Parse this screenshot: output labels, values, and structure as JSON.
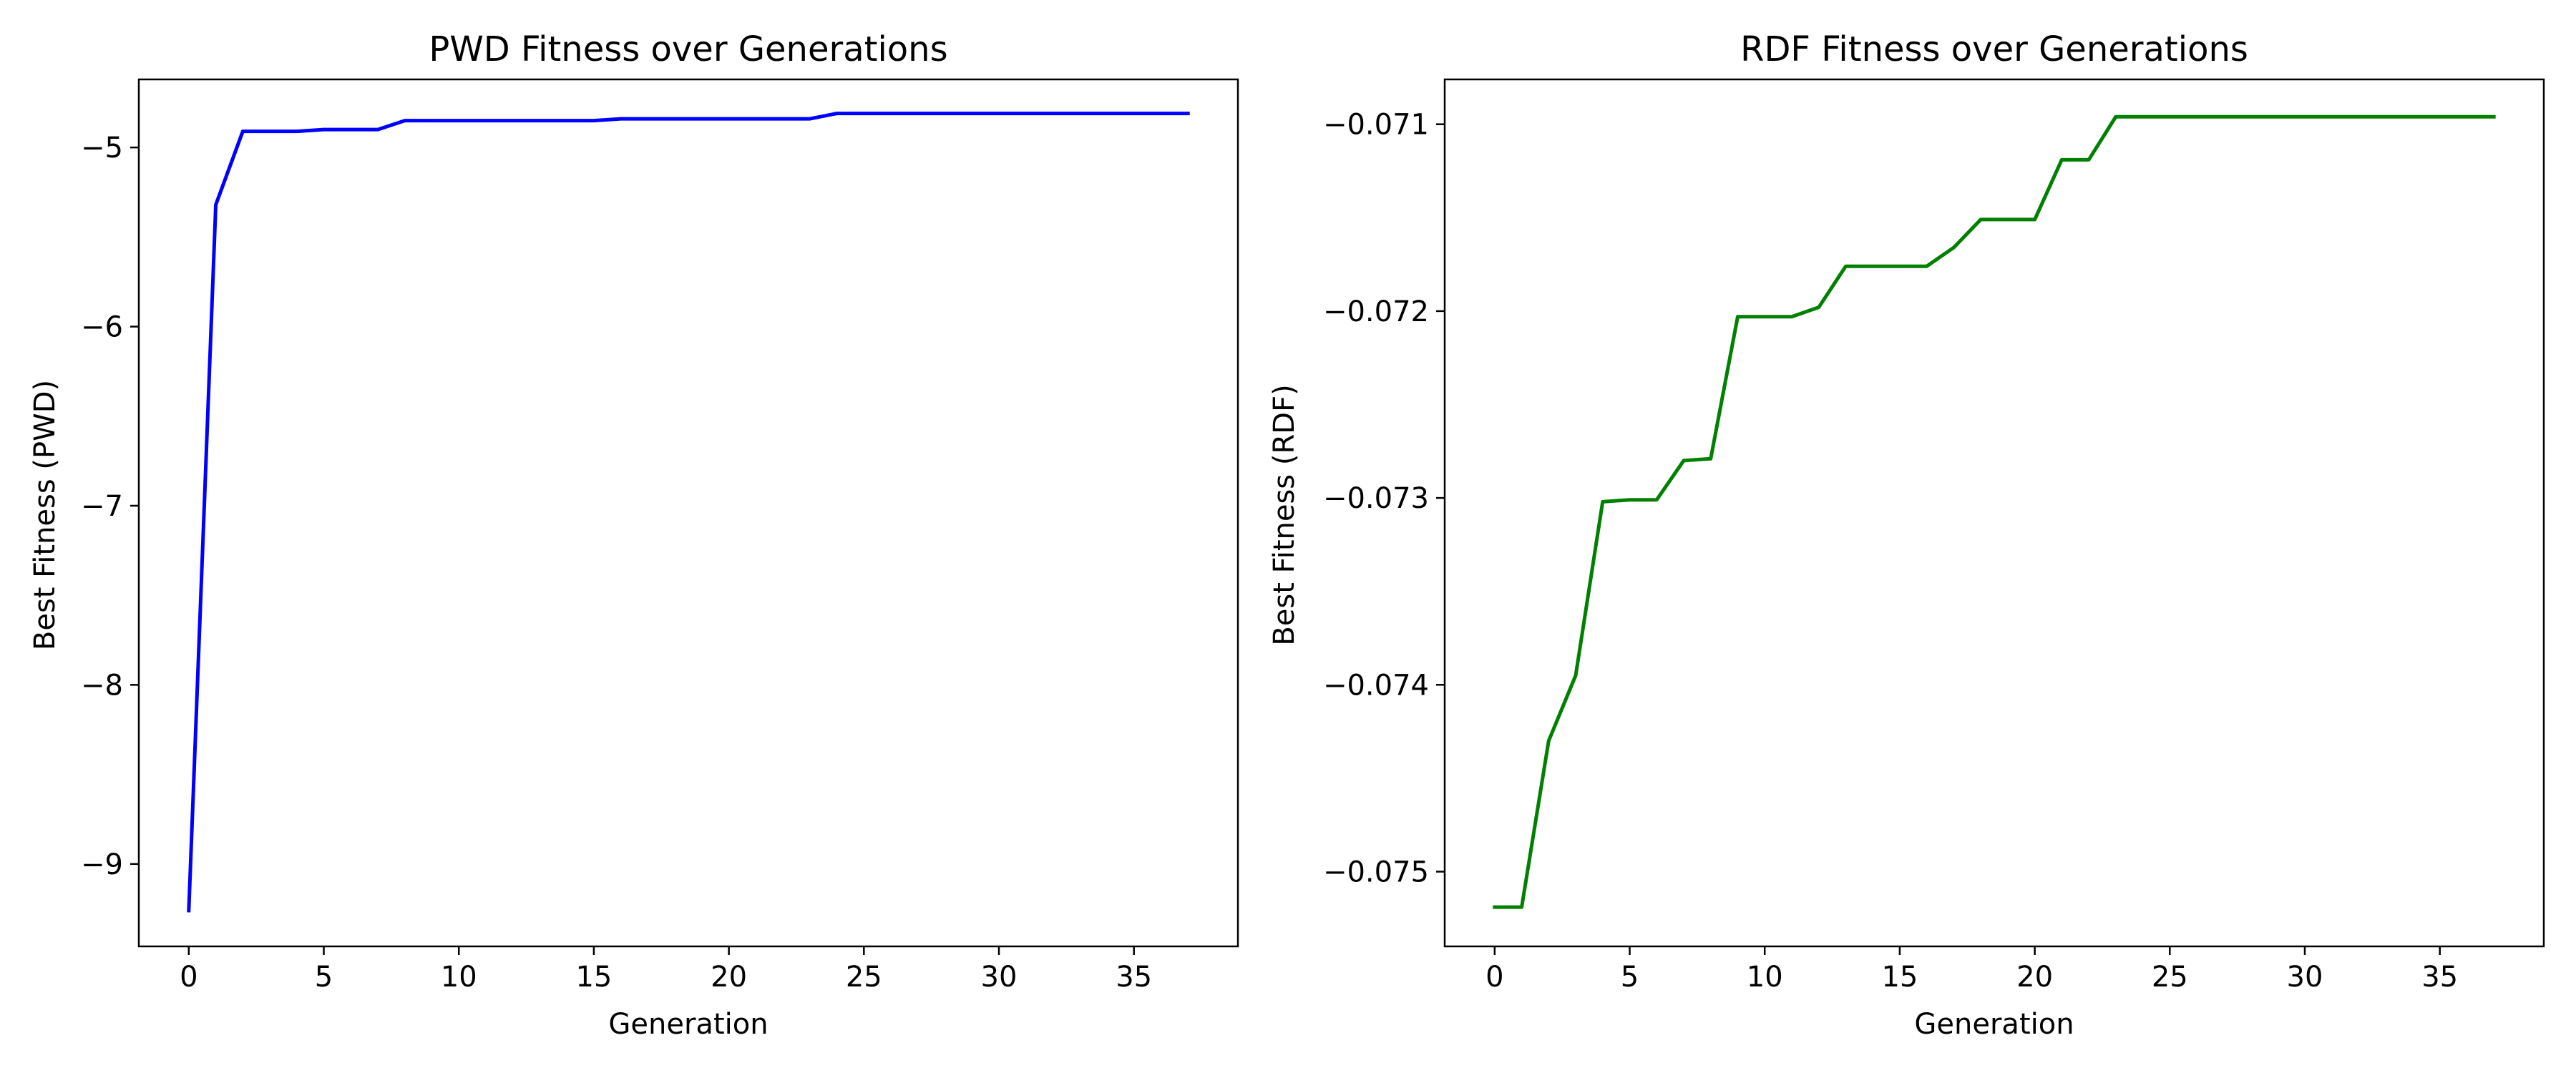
{
  "chart_data": [
    {
      "type": "line",
      "title": "PWD Fitness over Generations",
      "xlabel": "Generation",
      "ylabel": "Best Fitness (PWD)",
      "xlim": [
        -1.85,
        38.85
      ],
      "ylim": [
        -9.46,
        -4.62
      ],
      "xticks": [
        0,
        5,
        10,
        15,
        20,
        25,
        30,
        35
      ],
      "yticks": [
        -9,
        -8,
        -7,
        -6,
        -5
      ],
      "xtick_labels": [
        "0",
        "5",
        "10",
        "15",
        "20",
        "25",
        "30",
        "35"
      ],
      "ytick_labels": [
        "−9",
        "−8",
        "−7",
        "−6",
        "−5"
      ],
      "grid": false,
      "series": [
        {
          "color": "#0000ff",
          "x": [
            0,
            1,
            2,
            3,
            4,
            5,
            6,
            7,
            8,
            9,
            10,
            11,
            12,
            13,
            14,
            15,
            16,
            17,
            18,
            19,
            20,
            21,
            22,
            23,
            24,
            25,
            26,
            27,
            28,
            29,
            30,
            31,
            32,
            33,
            34,
            35,
            36,
            37
          ],
          "y": [
            -9.26,
            -5.32,
            -4.91,
            -4.91,
            -4.91,
            -4.9,
            -4.9,
            -4.9,
            -4.85,
            -4.85,
            -4.85,
            -4.85,
            -4.85,
            -4.85,
            -4.85,
            -4.85,
            -4.84,
            -4.84,
            -4.84,
            -4.84,
            -4.84,
            -4.84,
            -4.84,
            -4.84,
            -4.81,
            -4.81,
            -4.81,
            -4.81,
            -4.81,
            -4.81,
            -4.81,
            -4.81,
            -4.81,
            -4.81,
            -4.81,
            -4.81,
            -4.81,
            -4.81
          ]
        }
      ]
    },
    {
      "type": "line",
      "title": "RDF Fitness over Generations",
      "xlabel": "Generation",
      "ylabel": "Best Fitness (RDF)",
      "xlim": [
        -1.85,
        38.85
      ],
      "ylim": [
        -0.0754,
        -0.07076
      ],
      "xticks": [
        0,
        5,
        10,
        15,
        20,
        25,
        30,
        35
      ],
      "yticks": [
        -0.075,
        -0.074,
        -0.073,
        -0.072,
        -0.071
      ],
      "xtick_labels": [
        "0",
        "5",
        "10",
        "15",
        "20",
        "25",
        "30",
        "35"
      ],
      "ytick_labels": [
        "−0.075",
        "−0.074",
        "−0.073",
        "−0.072",
        "−0.071"
      ],
      "grid": false,
      "series": [
        {
          "color": "#008000",
          "x": [
            0,
            1,
            2,
            3,
            4,
            5,
            6,
            7,
            8,
            9,
            10,
            11,
            12,
            13,
            14,
            15,
            16,
            17,
            18,
            19,
            20,
            21,
            22,
            23,
            24,
            25,
            26,
            27,
            28,
            29,
            30,
            31,
            32,
            33,
            34,
            35,
            36,
            37
          ],
          "y": [
            -0.07519,
            -0.07519,
            -0.0743,
            -0.07395,
            -0.07302,
            -0.07301,
            -0.07301,
            -0.0728,
            -0.07279,
            -0.07203,
            -0.07203,
            -0.07203,
            -0.07198,
            -0.07176,
            -0.07176,
            -0.07176,
            -0.07176,
            -0.07166,
            -0.07151,
            -0.07151,
            -0.07151,
            -0.07119,
            -0.07119,
            -0.07096,
            -0.07096,
            -0.07096,
            -0.07096,
            -0.07096,
            -0.07096,
            -0.07096,
            -0.07096,
            -0.07096,
            -0.07096,
            -0.07096,
            -0.07096,
            -0.07096,
            -0.07096,
            -0.07096
          ]
        }
      ]
    }
  ]
}
